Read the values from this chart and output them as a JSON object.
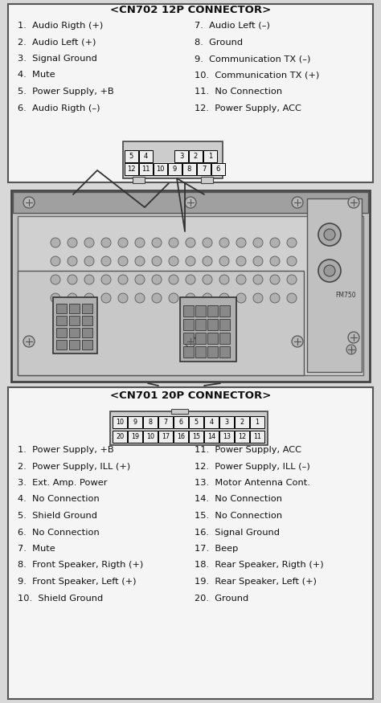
{
  "bg_color": "#d8d8d8",
  "cn702_title": "<CN702 12P CONNECTOR>",
  "cn702_left": [
    "1.  Audio Rigth (+)",
    "2.  Audio Left (+)",
    "3.  Signal Ground",
    "4.  Mute",
    "5.  Power Supply, +B",
    "6.  Audio Rigth (–)"
  ],
  "cn702_right": [
    "7.  Audio Left (–)",
    "8.  Ground",
    "9.  Communication TX (–)",
    "10.  Communication TX (+)",
    "11.  No Connection",
    "12.  Power Supply, ACC"
  ],
  "cn701_title": "<CN701 20P CONNECTOR>",
  "cn701_left": [
    "1.  Power Supply, +B",
    "2.  Power Supply, ILL (+)",
    "3.  Ext. Amp. Power",
    "4.  No Connection",
    "5.  Shield Ground",
    "6.  No Connection",
    "7.  Mute",
    "8.  Front Speaker, Rigth (+)",
    "9.  Front Speaker, Left (+)",
    "10.  Shield Ground"
  ],
  "cn701_right": [
    "11.  Power Supply, ACC",
    "12.  Power Supply, ILL (–)",
    "13.  Motor Antenna Cont.",
    "14.  No Connection",
    "15.  No Connection",
    "16.  Signal Ground",
    "17.  Beep",
    "18.  Rear Speaker, Rigth (+)",
    "19.  Rear Speaker, Left (+)",
    "20.  Ground"
  ],
  "text_color": "#111111"
}
